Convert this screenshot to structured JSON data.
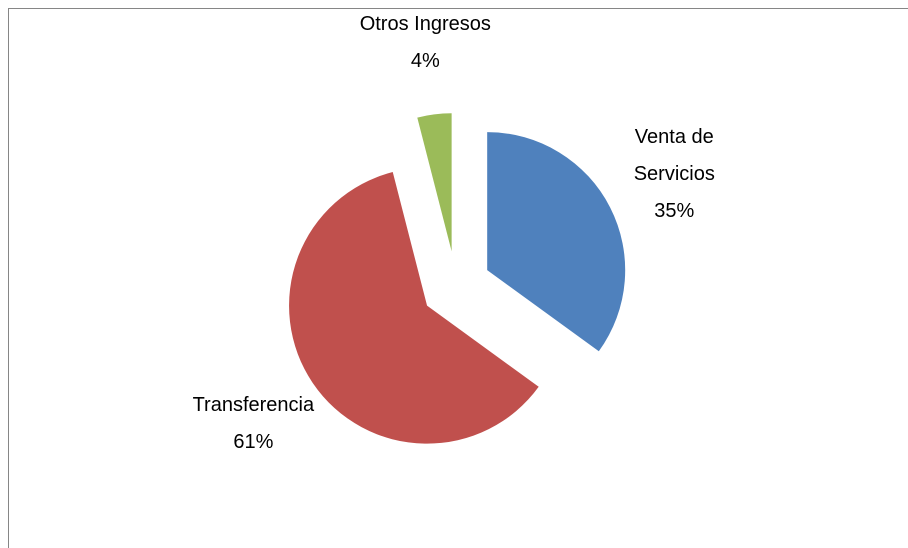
{
  "chart_data": {
    "type": "pie",
    "categories": [
      "Venta de Servicios",
      "Transferencia",
      "Otros Ingresos"
    ],
    "values": [
      35,
      61,
      4
    ],
    "value_labels": [
      "35%",
      "61%",
      "4%"
    ],
    "colors": [
      "#4f81bd",
      "#c0504d",
      "#9bbb59"
    ]
  }
}
